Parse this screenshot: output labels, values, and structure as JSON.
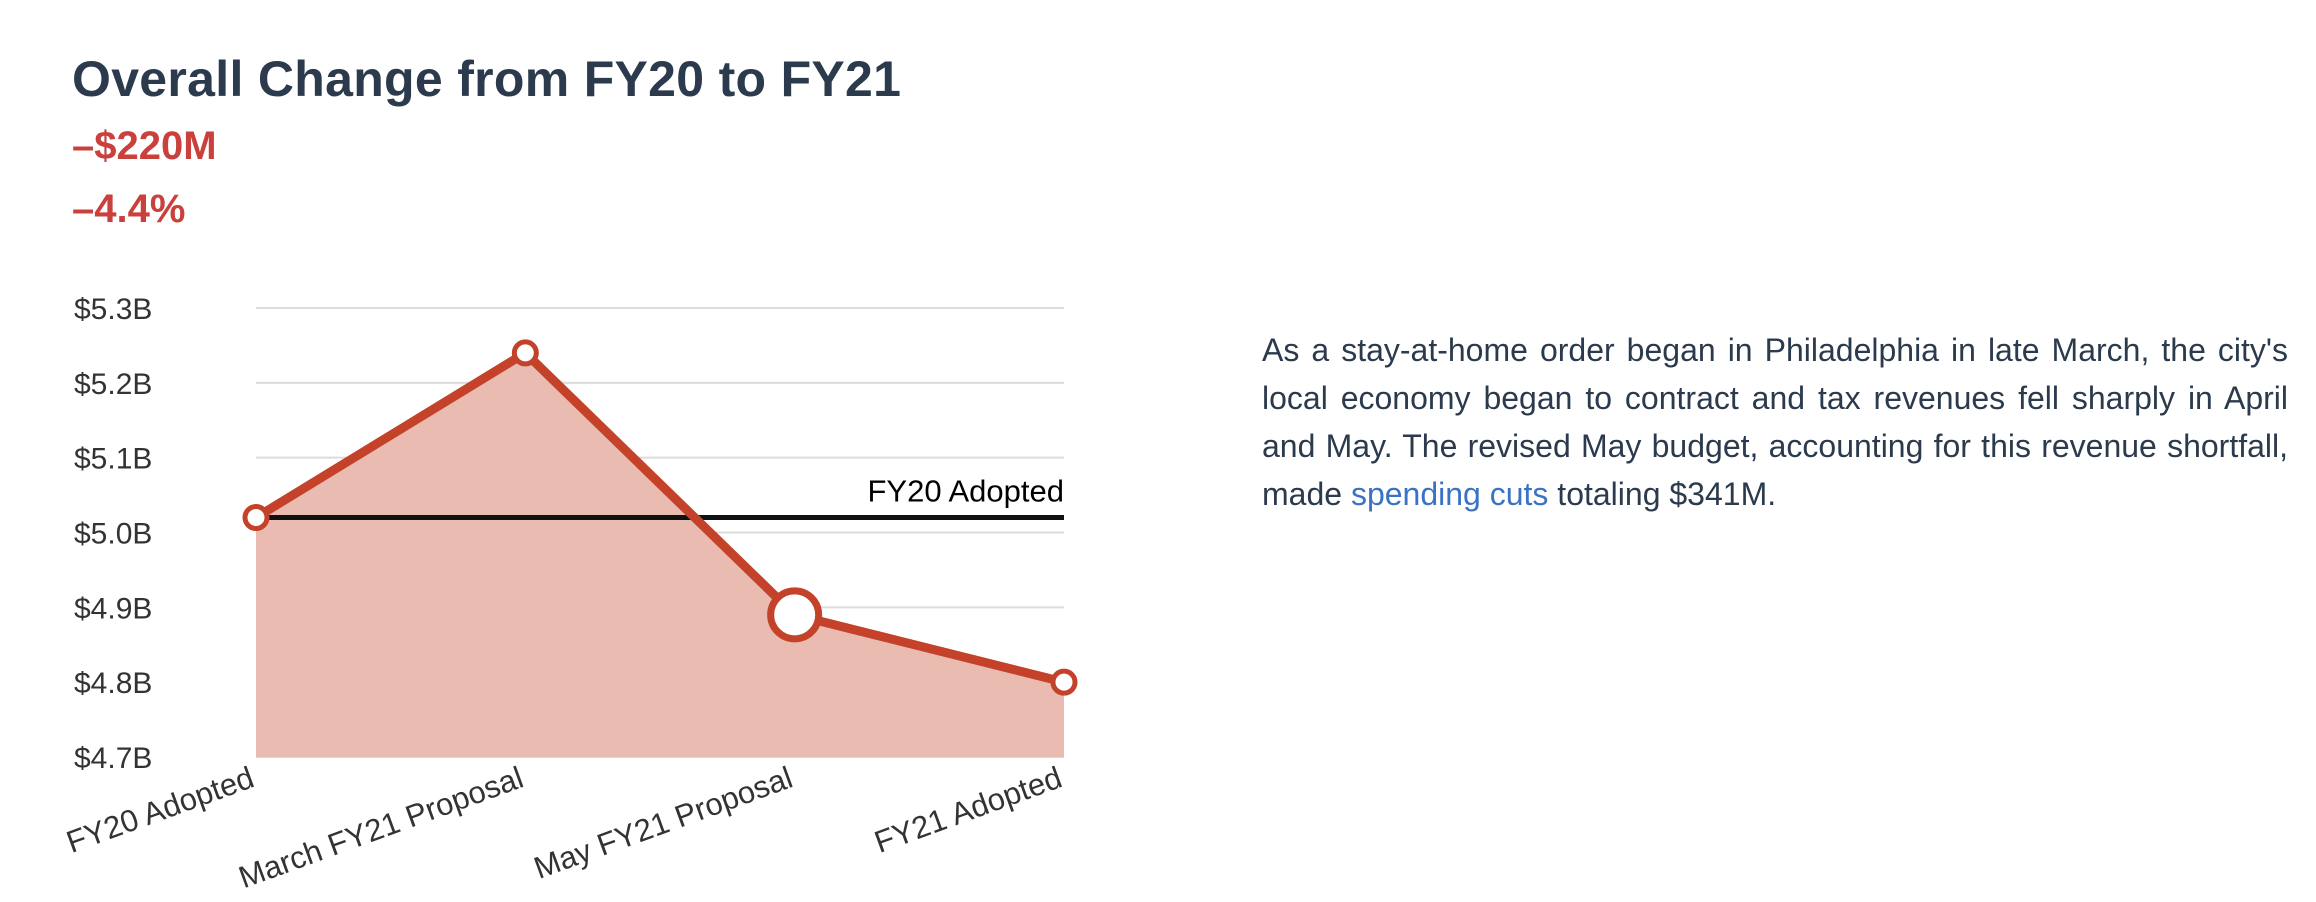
{
  "header": {
    "title": "Overall Change from FY20 to FY21",
    "change_amount": "–$220M",
    "change_percent": "–4.4%"
  },
  "description": {
    "text_before_link": "As a stay-at-home order began in Philadelphia in late March, the city's local economy began to contract and tax revenues fell sharply in April and May. The revised May budget, accounting for this revenue shortfall, made ",
    "link_text": "spending cuts",
    "text_after_link": " totaling $341M."
  },
  "colors": {
    "title": "#2b3a4c",
    "accent_red": "#c9403c",
    "series_line": "#c4422a",
    "area_fill": "#e8b7ad",
    "link": "#3a72c4"
  },
  "chart_data": {
    "type": "area",
    "categories": [
      "FY20 Adopted",
      "March FY21 Proposal",
      "May FY21 Proposal",
      "FY21 Adopted"
    ],
    "series": [
      {
        "values": [
          5.02,
          5.24,
          4.89,
          4.8
        ],
        "highlight_index": 2
      }
    ],
    "reference_line": {
      "label": "FY20 Adopted",
      "value": 5.02
    },
    "y_ticks": [
      {
        "value": 4.7,
        "label": "$4.7B"
      },
      {
        "value": 4.8,
        "label": "$4.8B"
      },
      {
        "value": 4.9,
        "label": "$4.9B"
      },
      {
        "value": 5.0,
        "label": "$5.0B"
      },
      {
        "value": 5.1,
        "label": "$5.1B"
      },
      {
        "value": 5.2,
        "label": "$5.2B"
      },
      {
        "value": 5.3,
        "label": "$5.3B"
      }
    ],
    "ylim": [
      4.7,
      5.3
    ],
    "grid": true,
    "x_label_rotation": "-20deg"
  }
}
